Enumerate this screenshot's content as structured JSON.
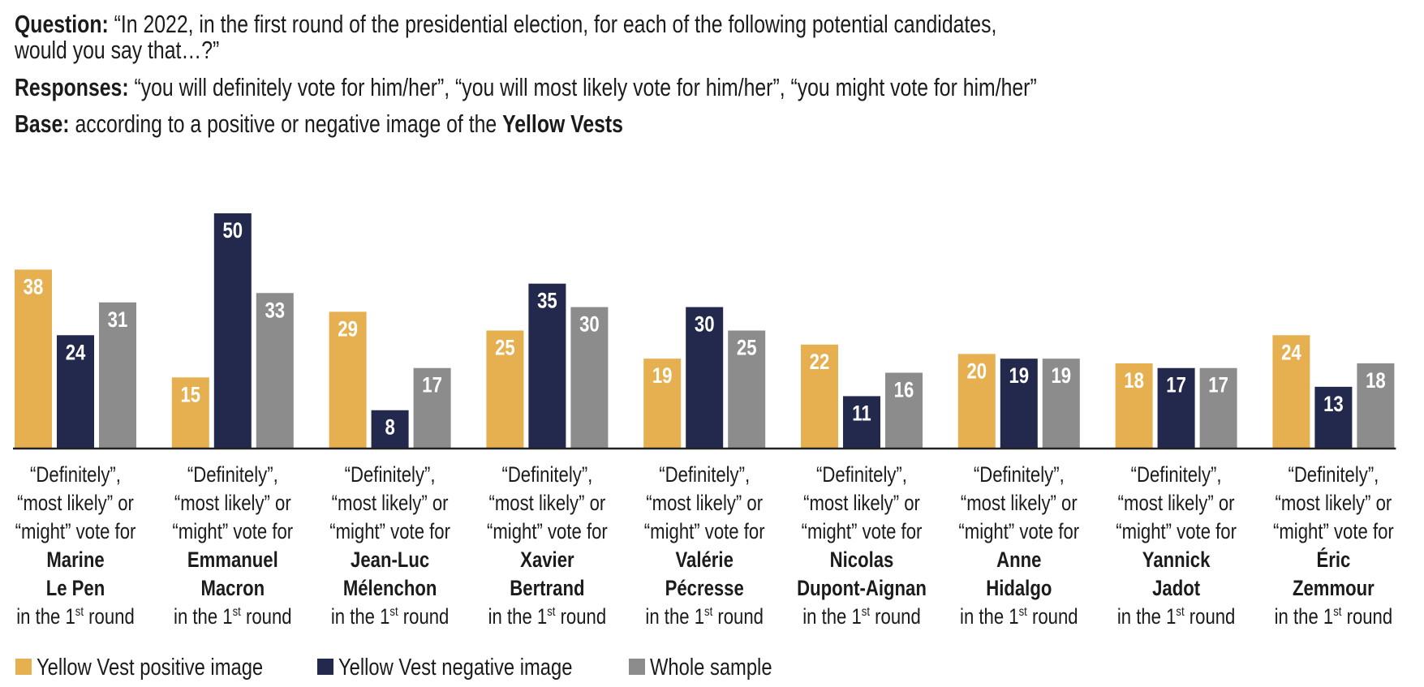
{
  "header": {
    "question_label": "Question:",
    "question_line1": " “In 2022, in the first round of the presidential election, for each of the following potential candidates,",
    "question_line2": "would you say that…?”",
    "responses_label": "Responses:",
    "responses_text": " “you will definitely vote for him/her”, “you will most likely vote for him/her”, “you might vote for him/her”",
    "base_label": "Base:",
    "base_text": " according to a positive or negative image of the ",
    "base_bold": "Yellow Vests"
  },
  "colors": {
    "positive": "#E6B051",
    "negative": "#23294D",
    "whole": "#8C8C8C",
    "axis": "#222222",
    "value_text": "#FFFFFF"
  },
  "chart_data": {
    "type": "bar",
    "title": "",
    "xlabel": "",
    "ylabel": "",
    "ylim": [
      0,
      50
    ],
    "grid": false,
    "legend_position": "bottom-left",
    "category_prefix": [
      "“Definitely”,",
      "“most likely” or",
      "“might” vote for"
    ],
    "category_suffix": {
      "text": "in the 1",
      "sup": "st",
      "tail": " round"
    },
    "categories": [
      {
        "name_line1": "Marine",
        "name_line2": "Le Pen"
      },
      {
        "name_line1": "Emmanuel",
        "name_line2": "Macron"
      },
      {
        "name_line1": "Jean-Luc",
        "name_line2": "Mélenchon"
      },
      {
        "name_line1": "Xavier",
        "name_line2": "Bertrand"
      },
      {
        "name_line1": "Valérie",
        "name_line2": "Pécresse"
      },
      {
        "name_line1": "Nicolas",
        "name_line2": "Dupont-Aignan"
      },
      {
        "name_line1": "Anne",
        "name_line2": "Hidalgo"
      },
      {
        "name_line1": "Yannick",
        "name_line2": "Jadot"
      },
      {
        "name_line1": "Éric",
        "name_line2": "Zemmour"
      }
    ],
    "series": [
      {
        "name": "Yellow Vest positive image",
        "color_key": "positive",
        "values": [
          38,
          15,
          29,
          25,
          19,
          22,
          20,
          18,
          24
        ]
      },
      {
        "name": "Yellow Vest negative image",
        "color_key": "negative",
        "values": [
          24,
          50,
          8,
          35,
          30,
          11,
          19,
          17,
          13
        ]
      },
      {
        "name": "Whole sample",
        "color_key": "whole",
        "values": [
          31,
          33,
          17,
          30,
          25,
          16,
          19,
          17,
          18
        ]
      }
    ]
  }
}
